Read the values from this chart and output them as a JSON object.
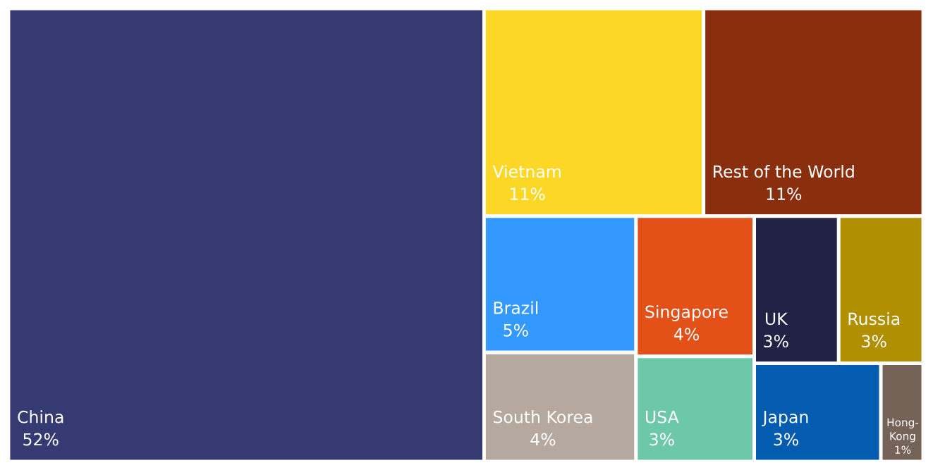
{
  "chart_data": {
    "type": "other",
    "categories": [
      "China",
      "Vietnam",
      "Rest of the World",
      "Brazil",
      "South Korea",
      "Singapore",
      "USA",
      "UK",
      "Russia",
      "Japan",
      "Hong-Kong"
    ],
    "values": [
      52,
      11,
      11,
      5,
      4,
      4,
      3,
      3,
      3,
      3,
      1
    ],
    "colors": [
      "#353b72",
      "#fdd726",
      "#8a2f0e",
      "#3399ff",
      "#b5a89f",
      "#e35118",
      "#6dc8aa",
      "#212245",
      "#b08f00",
      "#045cb0",
      "#756358"
    ],
    "value_labels": [
      "52%",
      "11%",
      "11%",
      "5%",
      "4%",
      "4%",
      "3%",
      "3%",
      "3%",
      "3%",
      "1%"
    ]
  }
}
